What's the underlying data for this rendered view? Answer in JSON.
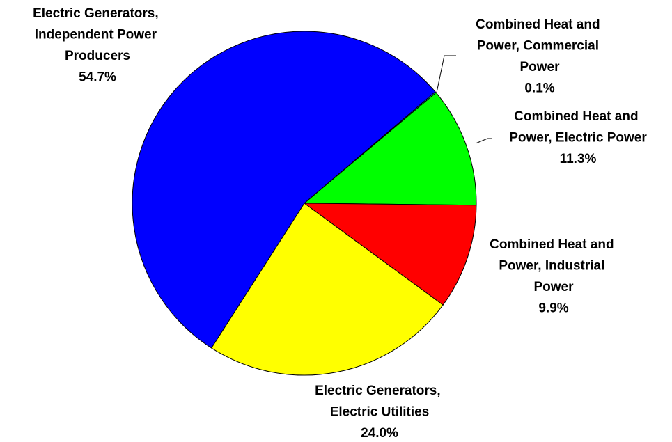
{
  "chart_data": {
    "type": "pie",
    "categories": [
      "Combined Heat and Power, Commercial Power",
      "Combined Heat and Power, Electric Power",
      "Combined Heat and Power, Industrial Power",
      "Electric Generators, Electric Utilities",
      "Electric Generators, Independent Power Producers"
    ],
    "values": [
      0.1,
      11.3,
      9.9,
      24.0,
      54.7
    ],
    "value_labels": [
      "0.1%",
      "11.3%",
      "9.9%",
      "24.0%",
      "54.7%"
    ],
    "colors": [
      "#00ffff",
      "#00ff00",
      "#ff0000",
      "#ffff00",
      "#0000ff"
    ]
  }
}
